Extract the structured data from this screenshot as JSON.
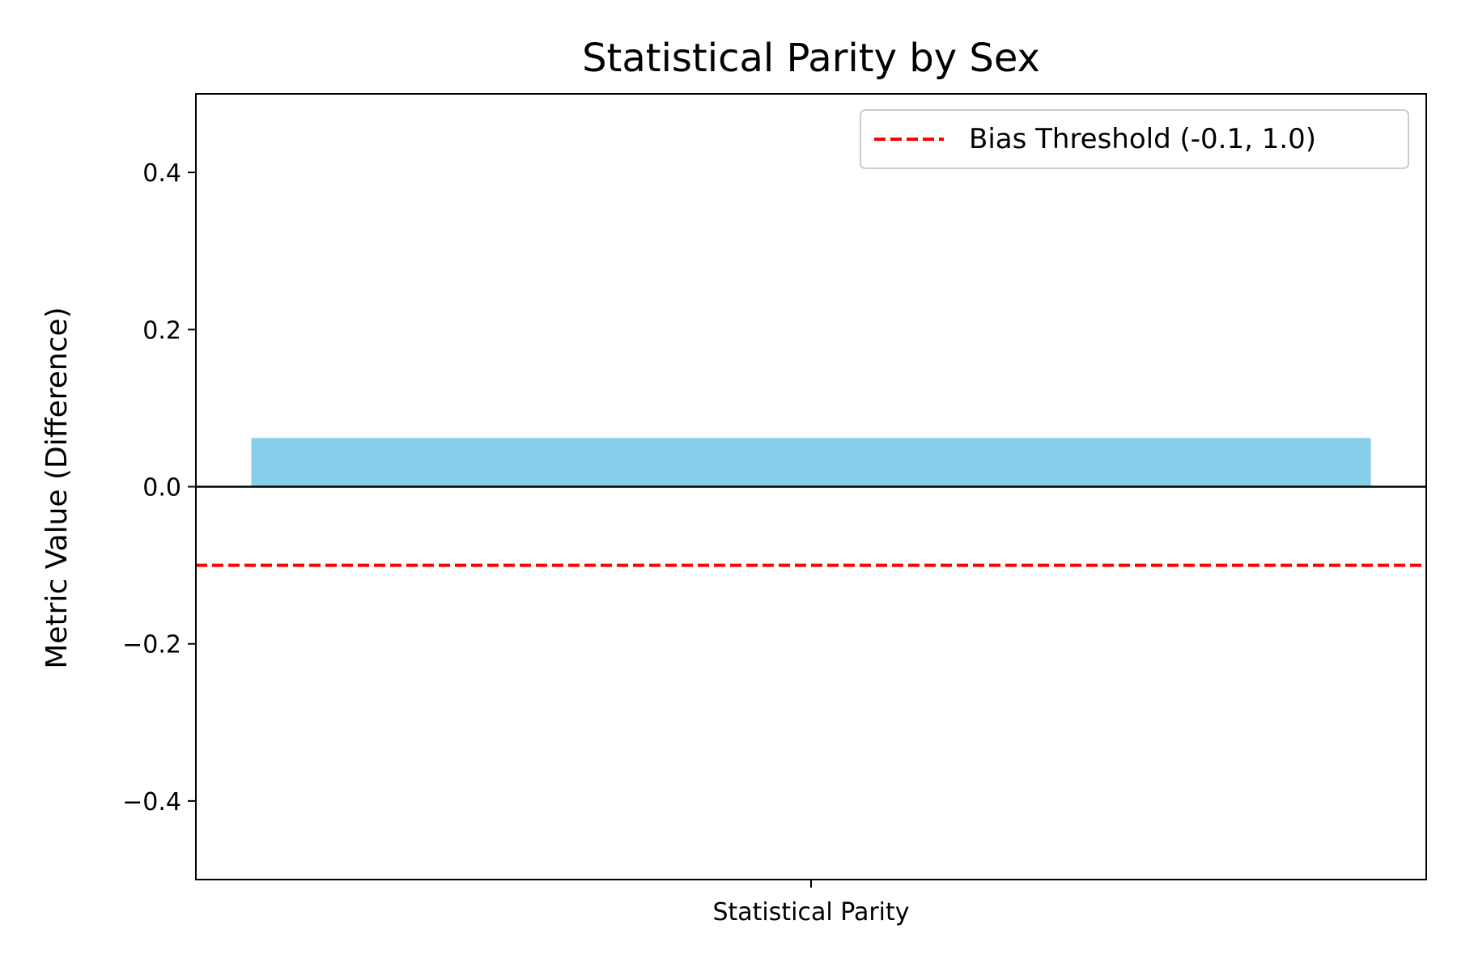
{
  "chart_data": {
    "type": "bar",
    "title": "Statistical Parity by Sex",
    "xlabel": "",
    "ylabel": "Metric Value (Difference)",
    "categories": [
      "Statistical Parity"
    ],
    "values": [
      0.062
    ],
    "ylim": [
      -0.5,
      0.5
    ],
    "yticks": [
      -0.4,
      -0.2,
      0.0,
      0.2,
      0.4
    ],
    "ytick_labels": [
      "−0.4",
      "−0.2",
      "0.0",
      "0.2",
      "0.4"
    ],
    "grid": false,
    "bar_color": "#87ceeb",
    "zero_line": {
      "value": 0.0,
      "color": "#000000"
    },
    "threshold_line": {
      "value": -0.1,
      "style": "dashed",
      "color": "#ff0000",
      "label": "Bias Threshold (-0.1, 1.0)"
    },
    "legend": {
      "placement": "top-right",
      "entries": [
        "Bias Threshold (-0.1, 1.0)"
      ]
    }
  }
}
